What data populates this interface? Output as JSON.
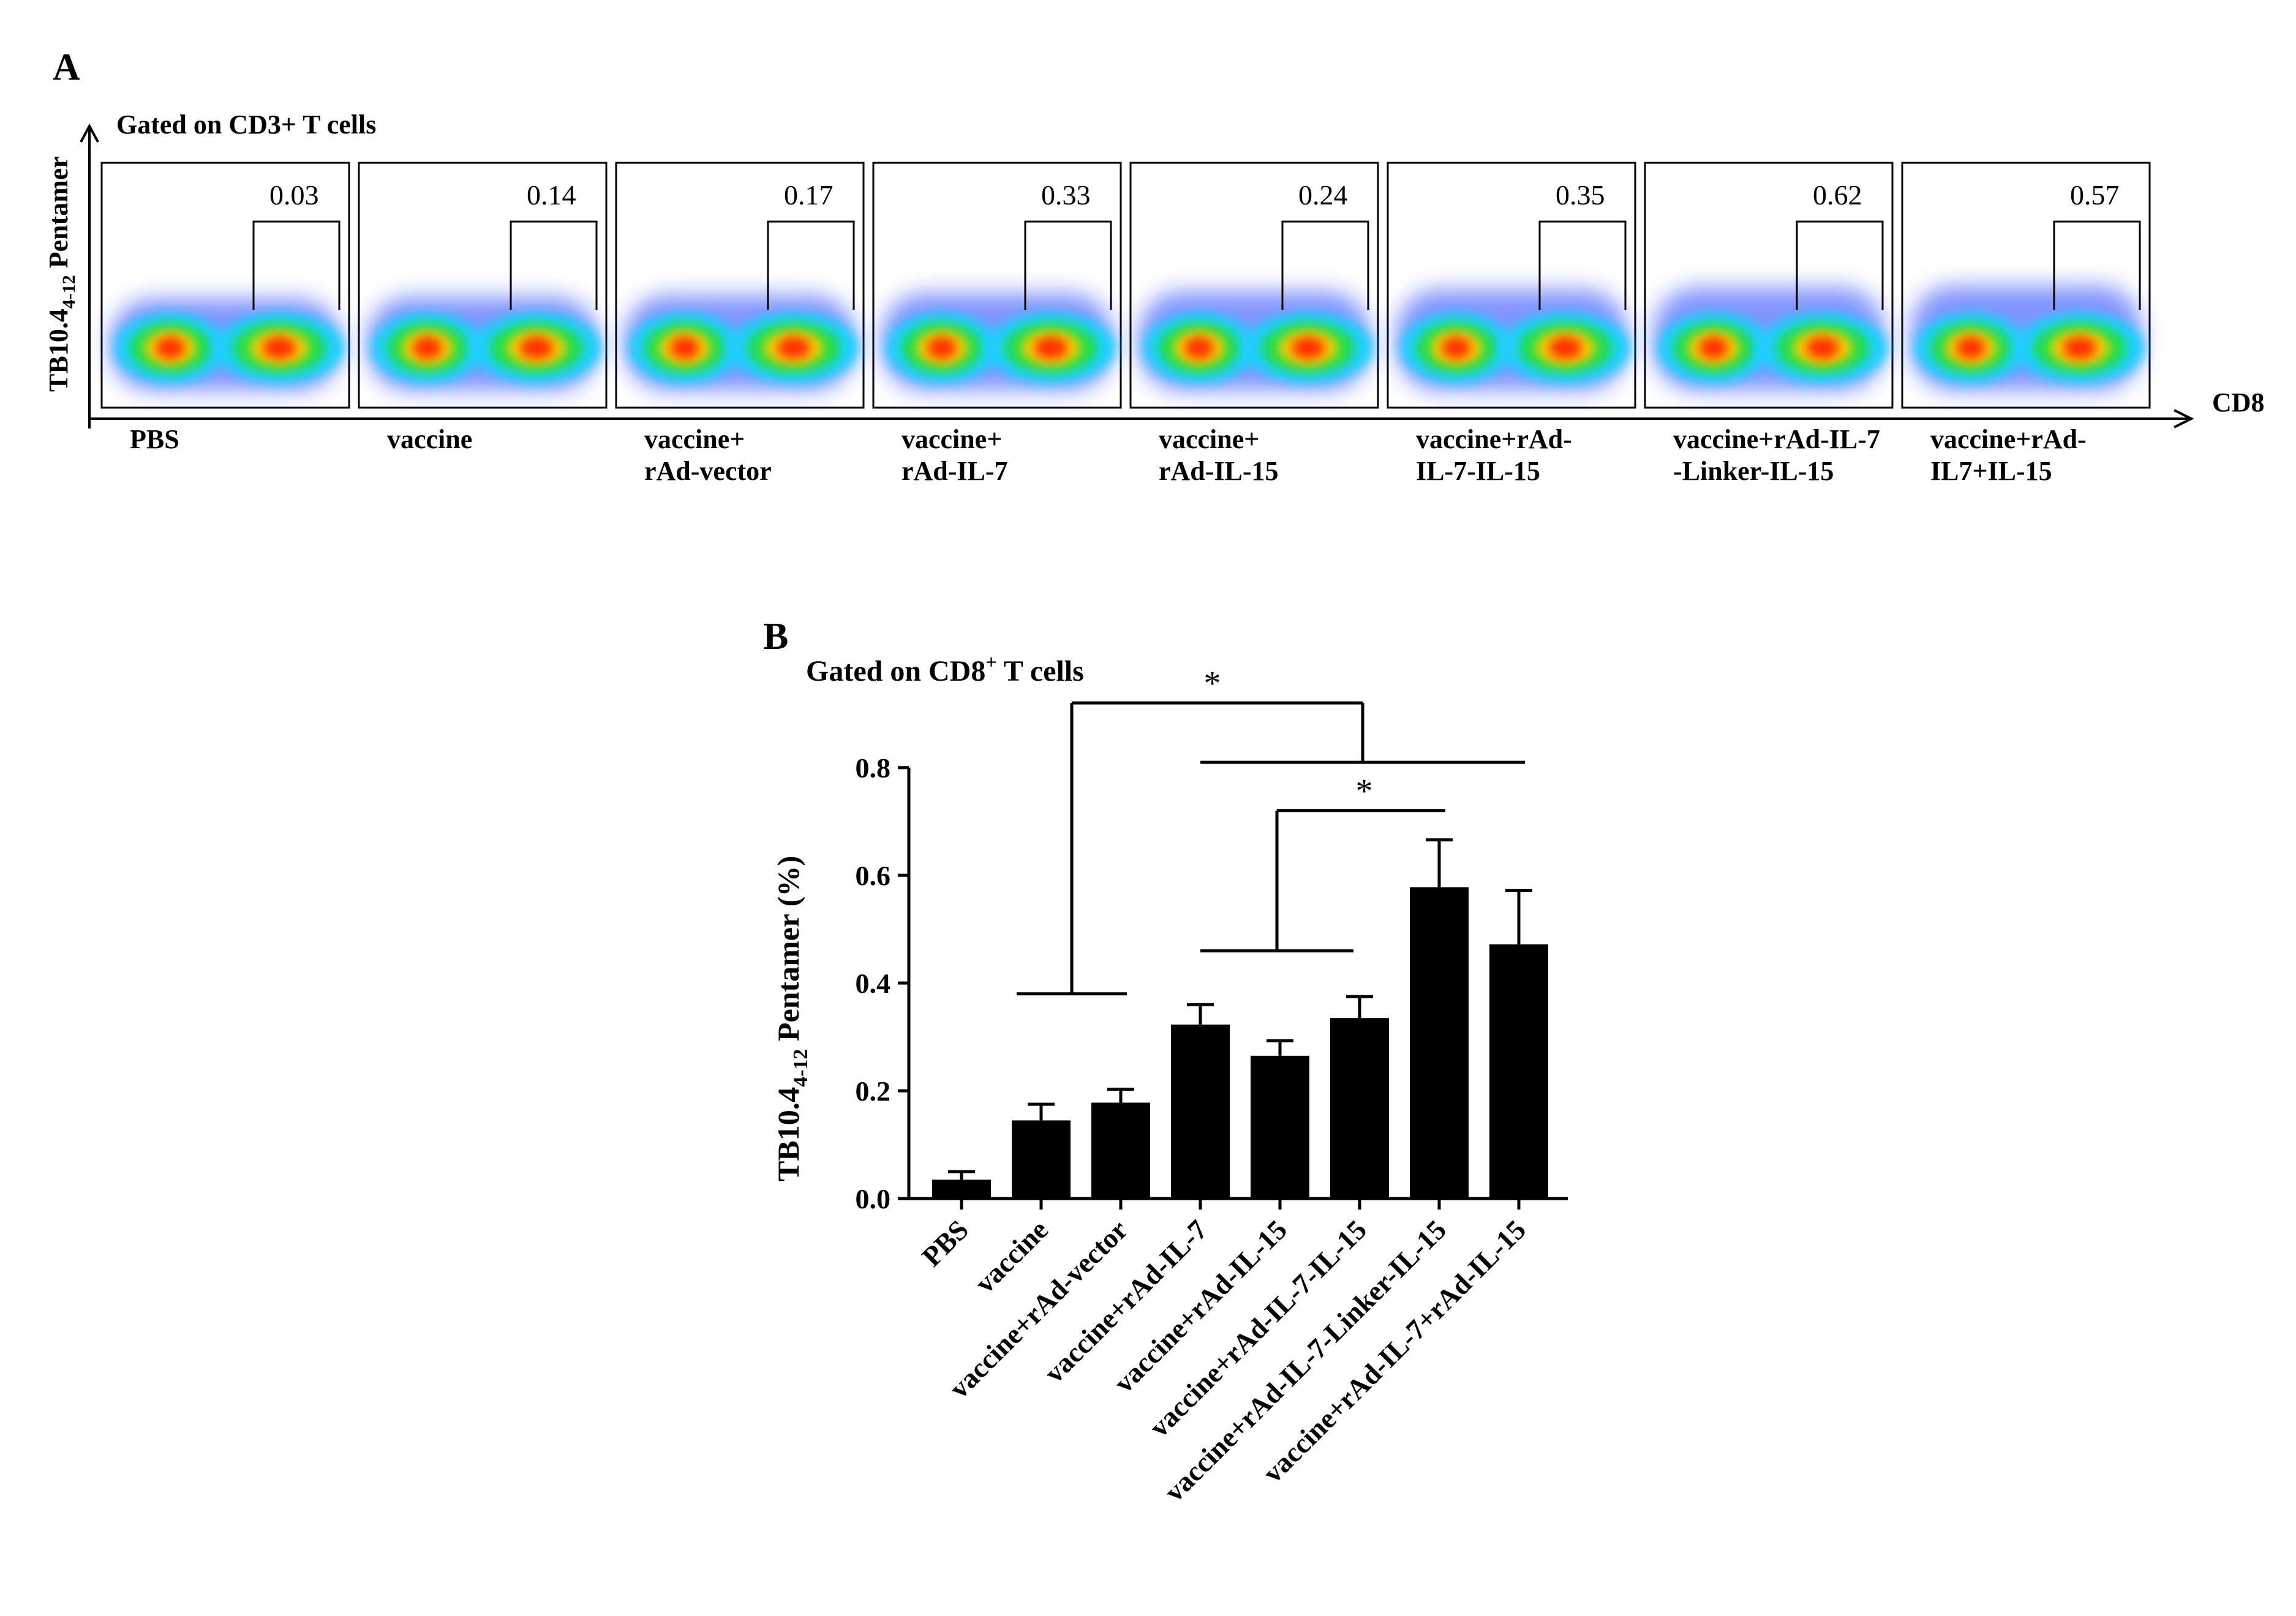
{
  "panel_a": {
    "label": "A",
    "gate": "Gated on CD3+ T cells",
    "y_label_main": "TB10.4",
    "y_label_sub": "4-12",
    "y_label_tail": " Pentamer",
    "x_label": "CD8",
    "plots": [
      {
        "value": "0.03",
        "group": [
          "PBS"
        ]
      },
      {
        "value": "0.14",
        "group": [
          "vaccine"
        ]
      },
      {
        "value": "0.17",
        "group": [
          "vaccine+",
          "rAd-vector"
        ]
      },
      {
        "value": "0.33",
        "group": [
          "vaccine+",
          "rAd-IL-7"
        ]
      },
      {
        "value": "0.24",
        "group": [
          "vaccine+",
          "rAd-IL-15"
        ]
      },
      {
        "value": "0.35",
        "group": [
          "vaccine+rAd-",
          "IL-7-IL-15"
        ]
      },
      {
        "value": "0.62",
        "group": [
          "vaccine+rAd-IL-7",
          "-Linker-IL-15"
        ]
      },
      {
        "value": "0.57",
        "group": [
          "vaccine+rAd-",
          "IL7+IL-15"
        ]
      }
    ]
  },
  "panel_b": {
    "label": "B",
    "gate_prefix": "Gated on CD8",
    "gate_sup": "+",
    "gate_suffix": " T cells",
    "sig_mark": "*"
  },
  "chart_data": [
    {
      "type": "bar",
      "title": "Gated on CD8+ T cells",
      "ylabel": "TB10.4 4-12 Pentamer (%)",
      "xlabel": "",
      "ylim": [
        0,
        0.8
      ],
      "yticks": [
        "0.0",
        "0.2",
        "0.4",
        "0.6",
        "0.8"
      ],
      "categories": [
        "PBS",
        "vaccine",
        "vaccine+rAd-vector",
        "vaccine+rAd-IL-7",
        "vaccine+rAd-IL-15",
        "vaccine+rAd-IL-7-IL-15",
        "vaccine+rAd-IL-7-Linker-IL-15",
        "vaccine+rAd-IL-7+rAd-IL-15"
      ],
      "values": [
        0.035,
        0.145,
        0.178,
        0.323,
        0.265,
        0.335,
        0.578,
        0.472
      ],
      "errors": [
        0.015,
        0.03,
        0.025,
        0.037,
        0.028,
        0.04,
        0.088,
        0.1
      ],
      "bar_color": "#000000",
      "grid": false,
      "legend": "none",
      "significance": [
        {
          "from": "PBS + vaccine + vaccine+rAd-vector",
          "to": "vaccine+rAd-IL-7 … vaccine+rAd-IL-7+rAd-IL-15",
          "label": "*"
        },
        {
          "from": "vaccine+rAd-IL-7 + vaccine+rAd-IL-15 + vaccine+rAd-IL-7-IL-15",
          "to": "vaccine+rAd-IL-7-Linker-IL-15",
          "label": "*"
        }
      ]
    }
  ]
}
